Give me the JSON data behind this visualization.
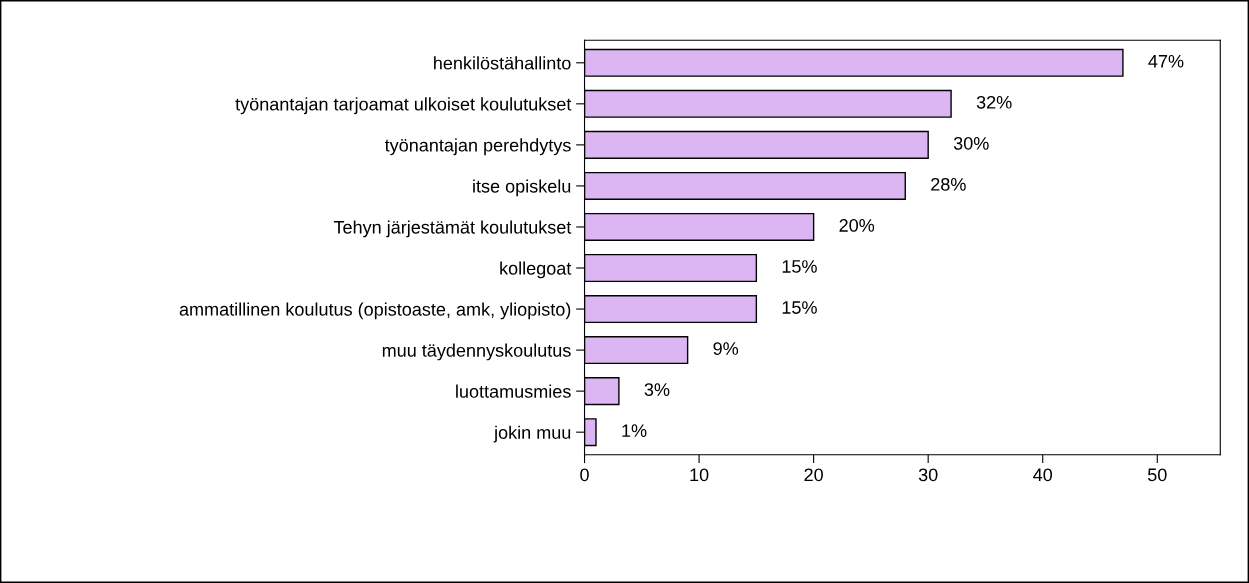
{
  "chart_data": {
    "type": "bar",
    "orientation": "horizontal",
    "categories": [
      "henkilöstähallinto",
      "työnantajan tarjoamat ulkoiset koulutukset",
      "työnantajan perehdytys",
      "itse opiskelu",
      "Tehyn järjestämät koulutukset",
      "kollegoat",
      "ammatillinen koulutus (opistoaste, amk, yliopisto)",
      "muu täydennyskoulutus",
      "luottamusmies",
      "jokin muu"
    ],
    "values": [
      47,
      32,
      30,
      28,
      20,
      15,
      15,
      9,
      3,
      1
    ],
    "value_labels": [
      "47%",
      "32%",
      "30%",
      "28%",
      "20%",
      "15%",
      "15%",
      "9%",
      "3%",
      "1%"
    ],
    "color": "#dcb6f2",
    "xlim": [
      0,
      55.5
    ],
    "xticks": [
      0,
      10,
      20,
      30,
      40,
      50
    ],
    "grid": false,
    "legend": false
  }
}
